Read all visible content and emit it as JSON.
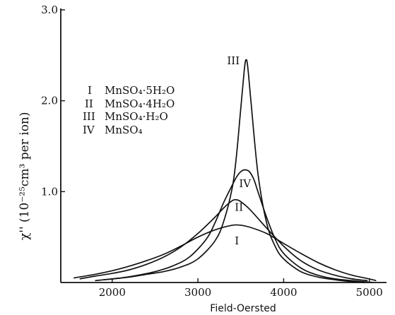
{
  "chart_data": {
    "type": "line",
    "xlabel": "Field-Oersted",
    "ylabel": "χ'' (10⁻²⁵cm³ per ion)",
    "xlim": [
      1400,
      5200
    ],
    "ylim": [
      0,
      3.0
    ],
    "x_ticks": [
      "2000",
      "3000",
      "4000",
      "5000"
    ],
    "y_ticks": [
      "1.0",
      "2.0",
      "3.0"
    ],
    "legend": [
      {
        "label": "I",
        "text": "MnSO₄·5H₂O"
      },
      {
        "label": "II",
        "text": "MnSO₄·4H₂O"
      },
      {
        "label": "III",
        "text": "MnSO₄·H₂O"
      },
      {
        "label": "IV",
        "text": "MnSO₄"
      }
    ],
    "series": [
      {
        "name": "I",
        "x": [
          1550,
          1800,
          2000,
          2200,
          2400,
          2600,
          2800,
          3000,
          3200,
          3400,
          3500,
          3600,
          3800,
          4000,
          4200,
          4400,
          4600,
          4800,
          5000,
          5080
        ],
        "values": [
          0.05,
          0.09,
          0.13,
          0.18,
          0.24,
          0.31,
          0.4,
          0.5,
          0.58,
          0.63,
          0.63,
          0.61,
          0.54,
          0.43,
          0.32,
          0.22,
          0.14,
          0.08,
          0.04,
          0.02
        ]
      },
      {
        "name": "II",
        "x": [
          1620,
          1800,
          2000,
          2200,
          2400,
          2600,
          2800,
          3000,
          3200,
          3300,
          3400,
          3450,
          3500,
          3600,
          3800,
          4000,
          4200,
          4400,
          4600,
          4800,
          4980
        ],
        "values": [
          0.04,
          0.07,
          0.1,
          0.14,
          0.2,
          0.28,
          0.39,
          0.54,
          0.72,
          0.82,
          0.9,
          0.91,
          0.89,
          0.81,
          0.6,
          0.4,
          0.24,
          0.14,
          0.08,
          0.04,
          0.02
        ]
      },
      {
        "name": "III",
        "x": [
          1800,
          2000,
          2200,
          2400,
          2600,
          2800,
          3000,
          3200,
          3300,
          3400,
          3450,
          3500,
          3540,
          3560,
          3580,
          3620,
          3700,
          3800,
          3900,
          4000,
          4200,
          4400,
          4600,
          4800,
          4950
        ],
        "values": [
          0.02,
          0.04,
          0.06,
          0.09,
          0.12,
          0.17,
          0.26,
          0.46,
          0.67,
          1.04,
          1.4,
          1.92,
          2.33,
          2.45,
          2.38,
          1.98,
          1.2,
          0.66,
          0.4,
          0.26,
          0.12,
          0.06,
          0.03,
          0.01,
          0.0
        ]
      },
      {
        "name": "IV",
        "x": [
          1900,
          2100,
          2300,
          2500,
          2700,
          2900,
          3100,
          3200,
          3300,
          3400,
          3450,
          3500,
          3550,
          3600,
          3650,
          3700,
          3800,
          3900,
          4000,
          4200,
          4400,
          4600,
          4800,
          5050
        ],
        "values": [
          0.03,
          0.05,
          0.08,
          0.12,
          0.18,
          0.28,
          0.48,
          0.66,
          0.88,
          1.07,
          1.16,
          1.22,
          1.24,
          1.22,
          1.14,
          1.0,
          0.72,
          0.48,
          0.32,
          0.16,
          0.08,
          0.04,
          0.02,
          0.0
        ]
      }
    ],
    "curve_labels": [
      {
        "label": "I",
        "x": 3430,
        "y": 0.42
      },
      {
        "label": "II",
        "x": 3430,
        "y": 0.79
      },
      {
        "label": "III",
        "x": 3340,
        "y": 2.4
      },
      {
        "label": "IV",
        "x": 3480,
        "y": 1.05
      }
    ],
    "grid": false,
    "legend_position": "top-left"
  }
}
